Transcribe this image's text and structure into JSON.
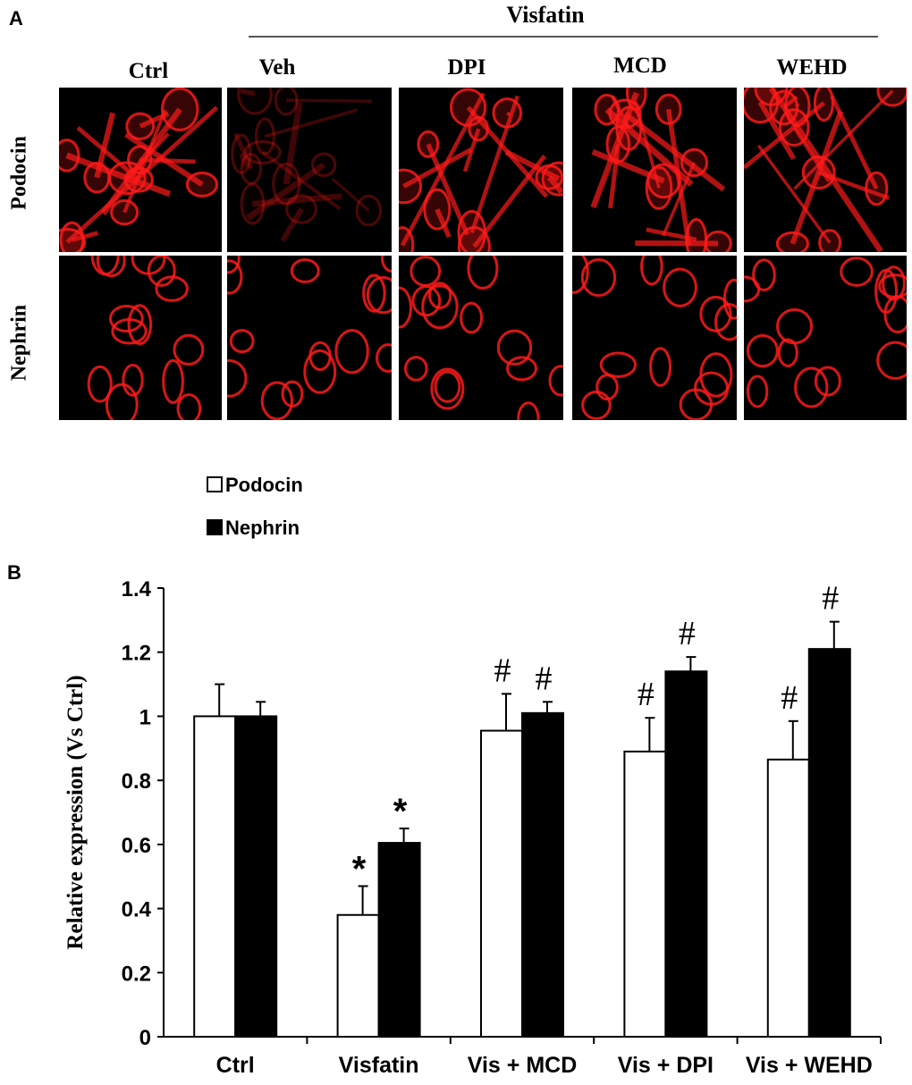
{
  "panel_a": {
    "label": "A",
    "group_label": "Visfatin",
    "columns": [
      "Ctrl",
      "Veh",
      "DPI",
      "MCD",
      "WEHD"
    ],
    "rows": [
      "Podocin",
      "Nephrin"
    ],
    "image_color": "#ff1a1a",
    "image_background": "#000000"
  },
  "panel_b": {
    "label": "B"
  },
  "chart_data": {
    "type": "bar",
    "categories": [
      "Ctrl",
      "Visfatin",
      "Vis + MCD",
      "Vis + DPI",
      "Vis + WEHD"
    ],
    "series": [
      {
        "name": "Podocin",
        "values": [
          1.0,
          0.38,
          0.955,
          0.89,
          0.865
        ],
        "errors": [
          0.1,
          0.09,
          0.115,
          0.105,
          0.12
        ],
        "fill": "#ffffff",
        "annotations": [
          "",
          "*",
          "#",
          "#",
          "#"
        ]
      },
      {
        "name": "Nephrin",
        "values": [
          1.0,
          0.605,
          1.01,
          1.14,
          1.21
        ],
        "errors": [
          0.045,
          0.045,
          0.035,
          0.045,
          0.085
        ],
        "fill": "#000000",
        "annotations": [
          "",
          "*",
          "#",
          "#",
          "#"
        ]
      }
    ],
    "ylabel": "Relative expression (Vs Ctrl)",
    "xlabel": "",
    "ylim": [
      0,
      1.4
    ],
    "yticks": [
      "0",
      "0.2",
      "0.4",
      "0.6",
      "0.8",
      "1",
      "1.2",
      "1.4"
    ],
    "legend_position": "top-left",
    "grid": false
  }
}
